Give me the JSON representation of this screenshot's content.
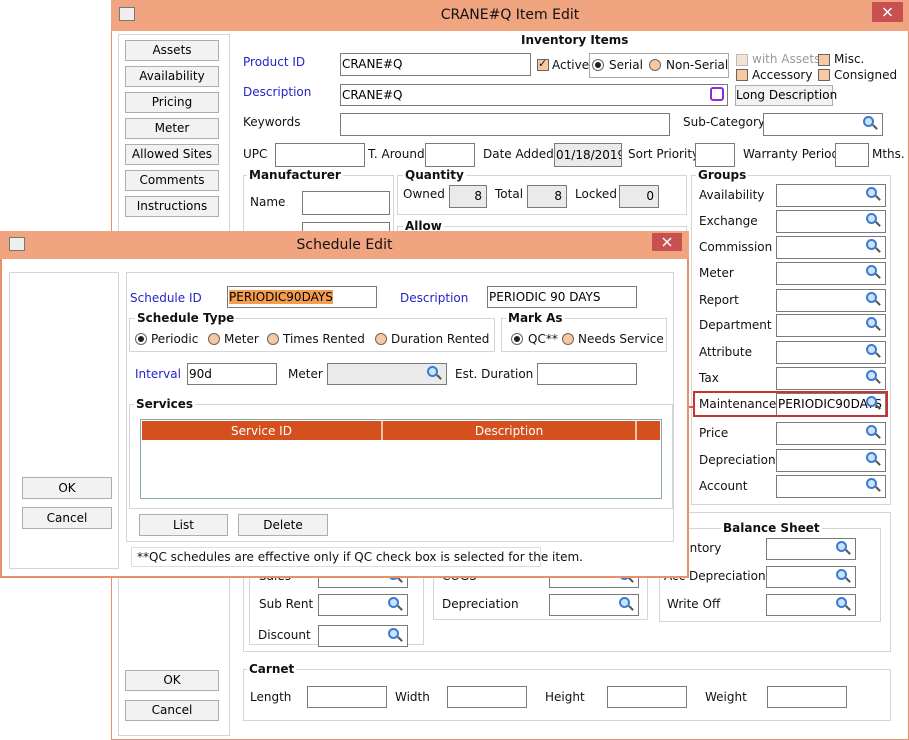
{
  "main_window": {
    "title": "CRANE#Q Item Edit",
    "side_buttons": [
      "Assets",
      "Availability",
      "Pricing",
      "Meter",
      "Allowed Sites",
      "Comments",
      "Instructions"
    ],
    "ok": "OK",
    "cancel": "Cancel",
    "inventory_items": {
      "heading": "Inventory Items",
      "product_id_label": "Product ID",
      "product_id": "CRANE#Q",
      "active": "Active",
      "serial": "Serial",
      "non_serial": "Non-Serial",
      "with_assets": "with Assets",
      "misc": "Misc.",
      "accessory": "Accessory",
      "consigned": "Consigned",
      "description_label": "Description",
      "description": "CRANE#Q",
      "long_description": "Long Description",
      "keywords": "Keywords",
      "sub_category": "Sub-Category",
      "upc": "UPC",
      "t_around": "T. Around",
      "date_added_label": "Date Added",
      "date_added": "01/18/2019",
      "sort_priority": "Sort Priority",
      "warranty_period": "Warranty Period",
      "mths": "Mths."
    },
    "manufacturer": {
      "heading": "Manufacturer",
      "name": "Name"
    },
    "quantity": {
      "heading": "Quantity",
      "owned_label": "Owned",
      "owned": 8,
      "total_label": "Total",
      "total": 8,
      "locked_label": "Locked",
      "locked": 0
    },
    "allow": {
      "heading": "Allow"
    },
    "groups": {
      "heading": "Groups",
      "rows": [
        {
          "label": "Availability"
        },
        {
          "label": "Exchange"
        },
        {
          "label": "Commission"
        },
        {
          "label": "Meter"
        },
        {
          "label": "Report"
        },
        {
          "label": "Department"
        },
        {
          "label": "Attribute"
        },
        {
          "label": "Tax"
        },
        {
          "label": "Maintenance",
          "value": "PERIODIC90DAYS"
        },
        {
          "label": "Price"
        },
        {
          "label": "Depreciation"
        },
        {
          "label": "Account"
        }
      ]
    },
    "rent": {
      "sales": "Sales",
      "sub_rent": "Sub Rent",
      "discount": "Discount"
    },
    "cost": {
      "cogs": "COGS",
      "depreciation": "Depreciation"
    },
    "balance_sheet": {
      "heading": "Balance Sheet",
      "inventory": "Inventory",
      "acc_depreciation": "Acc Depreciation",
      "write_off": "Write Off"
    },
    "carnet": {
      "heading": "Carnet",
      "length": "Length",
      "width": "Width",
      "height": "Height",
      "weight": "Weight"
    }
  },
  "schedule_edit": {
    "title": "Schedule Edit",
    "ok": "OK",
    "cancel": "Cancel",
    "schedule_id_label": "Schedule ID",
    "schedule_id": "PERIODIC90DAYS",
    "description_label": "Description",
    "description": "PERIODIC 90 DAYS",
    "schedule_type": {
      "heading": "Schedule Type",
      "options": [
        "Periodic",
        "Meter",
        "Times Rented",
        "Duration Rented"
      ]
    },
    "mark_as": {
      "heading": "Mark As",
      "options": [
        "QC**",
        "Needs Service"
      ]
    },
    "interval_label": "Interval",
    "interval": "90d",
    "meter": "Meter",
    "est_duration": "Est. Duration",
    "services": {
      "heading": "Services",
      "columns": [
        "Service ID",
        "Description"
      ]
    },
    "list": "List",
    "delete": "Delete",
    "footnote": "**QC schedules are effective only if QC check box is selected for the item."
  }
}
